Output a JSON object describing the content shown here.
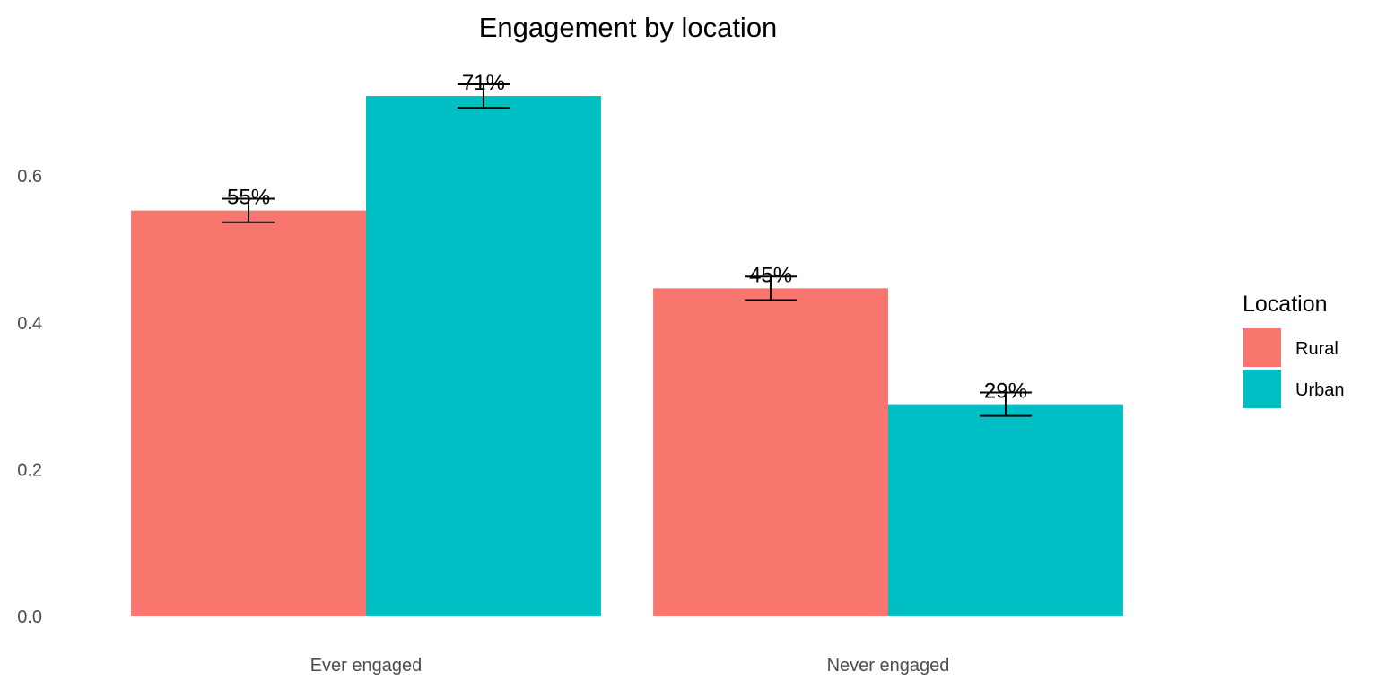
{
  "chart_data": {
    "type": "bar",
    "title": "Engagement by location",
    "xlabel": "",
    "ylabel": "",
    "categories": [
      "Ever engaged",
      "Never engaged"
    ],
    "series": [
      {
        "name": "Rural",
        "color": "#F8766D",
        "values": [
          0.553,
          0.447
        ],
        "error_low": [
          0.537,
          0.431
        ],
        "error_high": [
          0.569,
          0.463
        ],
        "labels": [
          "55%",
          "45%"
        ]
      },
      {
        "name": "Urban",
        "color": "#00BFC4",
        "values": [
          0.709,
          0.289
        ],
        "error_low": [
          0.693,
          0.273
        ],
        "error_high": [
          0.725,
          0.305
        ],
        "labels": [
          "71%",
          "29%"
        ]
      }
    ],
    "ylim": [
      0,
      0.75
    ],
    "yticks": [
      0.0,
      0.2,
      0.4,
      0.6
    ],
    "ytick_labels": [
      "0.0",
      "0.2",
      "0.4",
      "0.6"
    ],
    "grid": false,
    "legend": {
      "title": "Location",
      "position": "right"
    }
  }
}
